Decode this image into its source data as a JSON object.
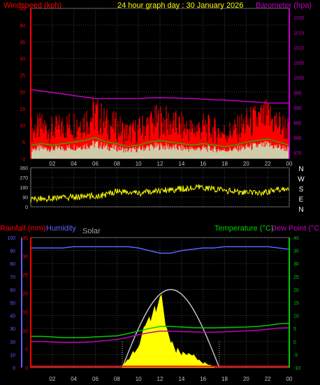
{
  "header": {
    "windspeed_label": "Windspeed (kph)",
    "title": "24 hour graph day : 30 January 2026",
    "barometer_label": "Barometer (hpa)"
  },
  "lower_header": {
    "rainfall_label": "Rainfall (mm)",
    "humidity_label": "Humidity",
    "solar_label": "Solar",
    "temperature_label": "Temperature (°C)",
    "dewpoint_label": "Dew Point (°C)"
  },
  "compass": [
    "N",
    "W",
    "S",
    "E",
    "N"
  ],
  "colors": {
    "wind": "#ff0000",
    "gust": "#ff0000",
    "avg_wind": "#00cc00",
    "baro": "#c000c0",
    "direction": "#ffff00",
    "humidity": "#6060ff",
    "temperature": "#00cc00",
    "dewpoint": "#c000c0",
    "rain": "#ff0000",
    "solar": "#ffff00",
    "solar_max": "#c0c0c0"
  },
  "chart_data": [
    {
      "type": "line",
      "panel": "wind-barometer",
      "x_tick_labels": [
        "02",
        "04",
        "06",
        "08",
        "10",
        "12",
        "14",
        "16",
        "18",
        "20",
        "22",
        "00"
      ],
      "y_left_ticks": [
        "0",
        "5",
        "10",
        "15",
        "20",
        "25",
        "30",
        "35",
        "40",
        "45"
      ],
      "y_left_range": [
        0,
        45
      ],
      "y_right_ticks": [
        "975",
        "980",
        "985",
        "990",
        "995",
        "1000",
        "1005",
        "1010",
        "1015",
        "1020"
      ],
      "y_right_range": [
        973,
        1023
      ],
      "hours": [
        0,
        1,
        2,
        3,
        4,
        5,
        6,
        7,
        8,
        9,
        10,
        11,
        12,
        13,
        14,
        15,
        16,
        17,
        18,
        19,
        20,
        21,
        22,
        23,
        24
      ],
      "series": [
        {
          "name": "Windspeed (kph)",
          "values": [
            9,
            10,
            9,
            10,
            11,
            12,
            14,
            11,
            10,
            8,
            9,
            11,
            12,
            11,
            10,
            9,
            10,
            9,
            8,
            9,
            11,
            12,
            13,
            11,
            9
          ]
        },
        {
          "name": "Barometer (hpa)",
          "values": [
            996,
            995.5,
            995,
            994.5,
            994,
            993.5,
            993,
            993,
            993,
            993,
            993,
            993.2,
            993.3,
            993.2,
            993.1,
            993,
            992.8,
            992.6,
            992.5,
            992.3,
            992,
            991.8,
            991.5,
            991.5,
            991.5
          ]
        }
      ]
    },
    {
      "type": "line",
      "panel": "wind-direction",
      "y_ticks": [
        "0",
        "90",
        "180",
        "270",
        "360"
      ],
      "y_range": [
        0,
        360
      ],
      "hours": [
        0,
        1,
        2,
        3,
        4,
        5,
        6,
        7,
        8,
        9,
        10,
        11,
        12,
        13,
        14,
        15,
        16,
        17,
        18,
        19,
        20,
        21,
        22,
        23,
        24
      ],
      "values": [
        70,
        75,
        80,
        85,
        90,
        95,
        100,
        110,
        150,
        130,
        125,
        135,
        150,
        160,
        165,
        170,
        175,
        165,
        150,
        140,
        130,
        125,
        140,
        160,
        175
      ]
    },
    {
      "type": "line",
      "panel": "rain-humidity-temperature",
      "y_left_ticks": [
        "0",
        "5",
        "10",
        "15",
        "20",
        "25",
        "30",
        "35"
      ],
      "y_left_range": [
        0,
        35
      ],
      "y_humidity_ticks": [
        "0",
        "10",
        "20",
        "30",
        "40",
        "50",
        "60",
        "70",
        "80",
        "90",
        "100"
      ],
      "y_humidity_range": [
        0,
        100
      ],
      "y_right_ticks": [
        "-10",
        "-5",
        "0",
        "5",
        "10",
        "15",
        "20",
        "25",
        "30",
        "35",
        "40"
      ],
      "y_right_range": [
        -10,
        40
      ],
      "hours": [
        0,
        1,
        2,
        3,
        4,
        5,
        6,
        7,
        8,
        9,
        10,
        11,
        12,
        13,
        14,
        15,
        16,
        17,
        18,
        19,
        20,
        21,
        22,
        23,
        24
      ],
      "series": [
        {
          "name": "Humidity",
          "values": [
            92,
            92,
            92,
            92,
            93,
            93,
            93,
            93,
            93,
            93,
            92,
            90,
            88,
            88,
            90,
            91,
            92,
            92,
            93,
            93,
            93,
            93,
            93,
            92,
            91
          ]
        },
        {
          "name": "Temperature (°C)",
          "values": [
            2,
            2,
            1.8,
            1.5,
            1.5,
            1.5,
            1.8,
            2,
            2.2,
            3,
            4,
            5,
            5.8,
            5.8,
            5.6,
            5.4,
            5.3,
            5.3,
            5.4,
            5.5,
            5.6,
            5.8,
            6.2,
            6.8,
            7
          ]
        },
        {
          "name": "Dew Point (°C)",
          "values": [
            0,
            0,
            -0.2,
            -0.4,
            -0.4,
            -0.3,
            0,
            0.4,
            0.8,
            1.6,
            2.6,
            3.4,
            4,
            4,
            3.8,
            3.7,
            3.6,
            3.6,
            3.7,
            3.9,
            4.1,
            4.3,
            4.7,
            5.2,
            5.3
          ]
        },
        {
          "name": "Rainfall (mm)",
          "values": [
            0.3,
            0.3,
            0.3,
            0.3,
            0.3,
            0.3,
            0.3,
            0.3,
            0.3,
            0.3,
            0.3,
            0.3,
            0.3,
            0.3,
            0.3,
            0.3,
            0.3,
            0.3,
            0.3,
            0.3,
            0.3,
            0.3,
            0.3,
            0.3,
            0.3
          ]
        }
      ],
      "solar": {
        "hours": [
          8.5,
          9,
          9.5,
          10,
          10.5,
          11,
          11.5,
          12,
          12.5,
          13,
          13.5,
          14,
          14.5,
          15,
          15.5,
          16,
          16.5,
          17
        ],
        "values": [
          20,
          60,
          110,
          180,
          320,
          350,
          420,
          560,
          300,
          200,
          150,
          120,
          110,
          100,
          60,
          40,
          20,
          5
        ],
        "max_curve_peak": 600
      }
    }
  ]
}
